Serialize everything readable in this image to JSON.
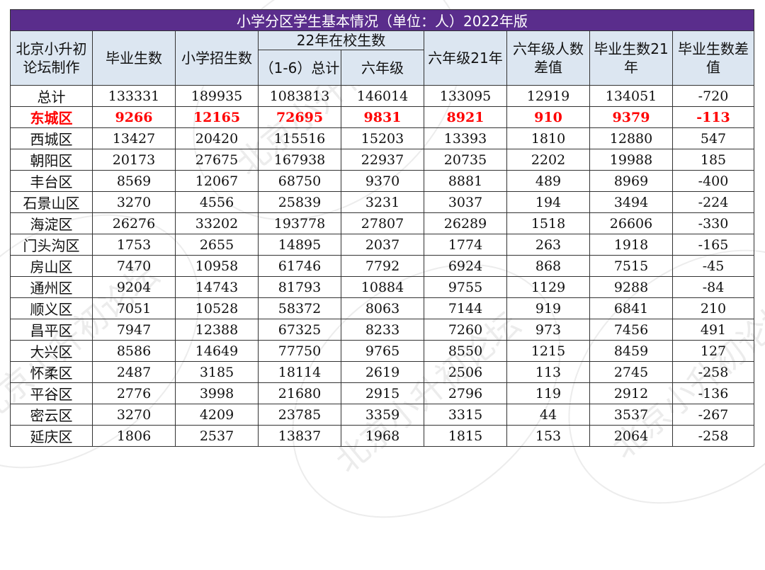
{
  "title": "小学分区学生基本情况（单位：人）2022年版",
  "headers": {
    "corner": "北京小升初论坛制作",
    "grads": "毕业生数",
    "enroll": "小学招生数",
    "group": "22年在校生数",
    "total": "（1-6）总计",
    "grade6": "六年级",
    "grade6_21": "六年级21年",
    "g6_diff": "六年级人数差值",
    "grads21": "毕业生数21年",
    "grads_diff": "毕业生数差值"
  },
  "rows": [
    [
      "总计",
      "133331",
      "189935",
      "1083813",
      "146014",
      "133095",
      "12919",
      "134051",
      "-720"
    ],
    [
      "东城区",
      "9266",
      "12165",
      "72695",
      "9831",
      "8921",
      "910",
      "9379",
      "-113"
    ],
    [
      "西城区",
      "13427",
      "20420",
      "115516",
      "15203",
      "13393",
      "1810",
      "12880",
      "547"
    ],
    [
      "朝阳区",
      "20173",
      "27675",
      "167938",
      "22937",
      "20735",
      "2202",
      "19988",
      "185"
    ],
    [
      "丰台区",
      "8569",
      "12067",
      "68750",
      "9370",
      "8881",
      "489",
      "8969",
      "-400"
    ],
    [
      "石景山区",
      "3270",
      "4556",
      "25839",
      "3231",
      "3037",
      "194",
      "3494",
      "-224"
    ],
    [
      "海淀区",
      "26276",
      "33202",
      "193778",
      "27807",
      "26289",
      "1518",
      "26606",
      "-330"
    ],
    [
      "门头沟区",
      "1753",
      "2655",
      "14895",
      "2037",
      "1774",
      "263",
      "1918",
      "-165"
    ],
    [
      "房山区",
      "7470",
      "10958",
      "61746",
      "7792",
      "6924",
      "868",
      "7515",
      "-45"
    ],
    [
      "通州区",
      "9204",
      "14743",
      "81793",
      "10884",
      "9755",
      "1129",
      "9288",
      "-84"
    ],
    [
      "顺义区",
      "7051",
      "10528",
      "58372",
      "8063",
      "7144",
      "919",
      "6841",
      "210"
    ],
    [
      "昌平区",
      "7947",
      "12388",
      "67325",
      "8233",
      "7260",
      "973",
      "7456",
      "491"
    ],
    [
      "大兴区",
      "8586",
      "14649",
      "77750",
      "9765",
      "8550",
      "1215",
      "8459",
      "127"
    ],
    [
      "怀柔区",
      "2487",
      "3185",
      "18114",
      "2619",
      "2506",
      "113",
      "2745",
      "-258"
    ],
    [
      "平谷区",
      "2776",
      "3998",
      "21680",
      "2915",
      "2796",
      "119",
      "2912",
      "-136"
    ],
    [
      "密云区",
      "3270",
      "4209",
      "23785",
      "3359",
      "3315",
      "44",
      "3537",
      "-267"
    ],
    [
      "延庆区",
      "1806",
      "2537",
      "13837",
      "1968",
      "1815",
      "153",
      "2064",
      "-258"
    ]
  ],
  "highlight_row": 1,
  "highlight_color": "#ff0000",
  "title_bg": "#5a2d8c",
  "header_bg": "#dce6f1",
  "watermark_text": "北京小升初论坛"
}
